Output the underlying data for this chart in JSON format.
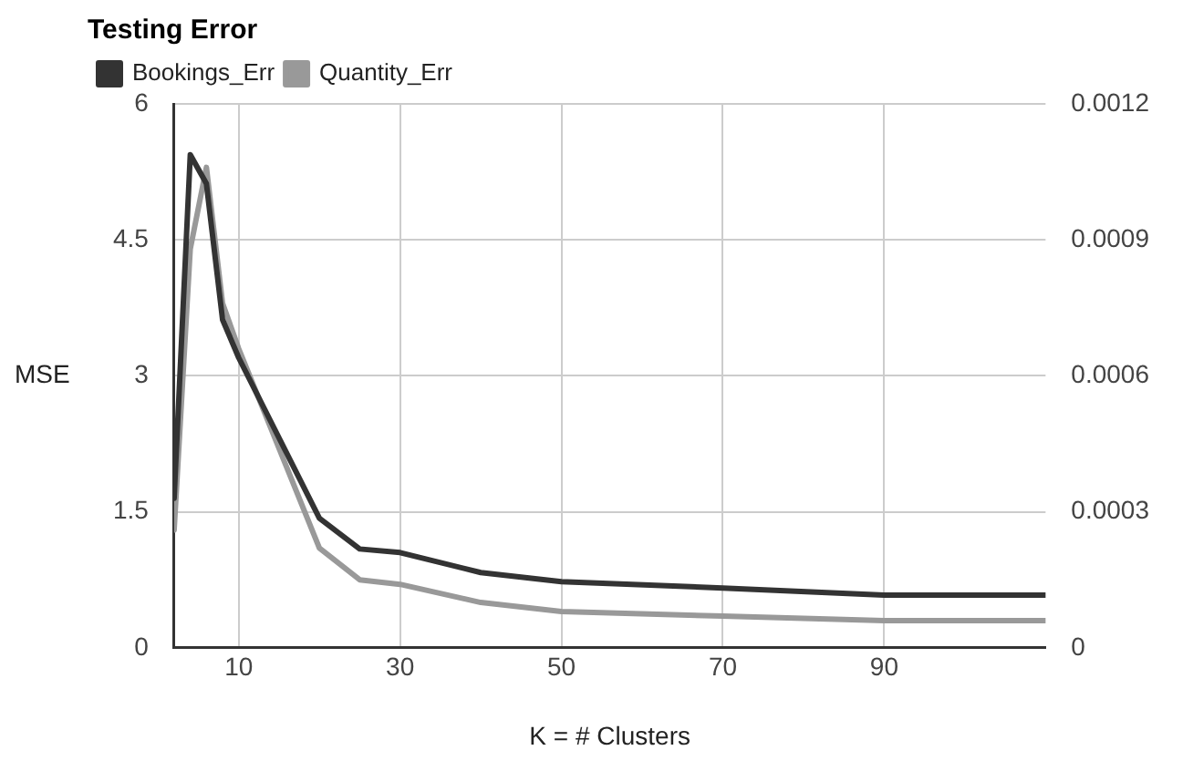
{
  "chart_data": {
    "type": "line",
    "title": "Testing Error",
    "xlabel": "K = # Clusters",
    "ylabel": "MSE",
    "xlim": [
      2,
      110
    ],
    "xticks": [
      10,
      30,
      50,
      70,
      90
    ],
    "ylim": [
      0,
      6
    ],
    "yticks": [
      0,
      1.5,
      3,
      4.5,
      6
    ],
    "y2lim": [
      0,
      0.0012
    ],
    "y2ticks": [
      0,
      0.0003,
      0.0006,
      0.0009,
      0.0012
    ],
    "grid": true,
    "legend": "top left",
    "marker": "none",
    "line_style": "solid",
    "series": [
      {
        "name": "Bookings_Err",
        "color": "#333333",
        "x": [
          2,
          4,
          6,
          8,
          10,
          20,
          25,
          30,
          40,
          50,
          70,
          90,
          110
        ],
        "values": [
          1.65,
          5.44,
          5.12,
          3.62,
          3.2,
          1.43,
          1.09,
          1.05,
          0.83,
          0.73,
          0.66,
          0.58,
          0.58
        ]
      },
      {
        "name": "Quantity_Err",
        "color": "#999999",
        "axis": "y2",
        "x": [
          2,
          4,
          6,
          8,
          10,
          20,
          25,
          30,
          40,
          50,
          70,
          90,
          110
        ],
        "values": [
          0.00026,
          0.00088,
          0.00106,
          0.00076,
          0.00066,
          0.00022,
          0.00015,
          0.00014,
          0.0001,
          8e-05,
          7e-05,
          6e-05,
          6e-05
        ]
      }
    ]
  }
}
